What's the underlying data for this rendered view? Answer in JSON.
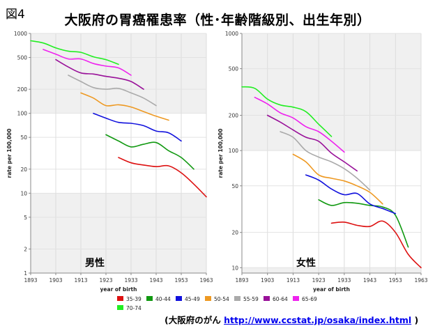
{
  "figure_label": "図4",
  "title": "大阪府の胃癌罹患率（性･年齢階級別、出生年別）",
  "footer": {
    "prefix": "(大阪府のがん ",
    "link": "http://www.ccstat.jp/osaka/index.html",
    "suffix": " )"
  },
  "chart_data": [
    {
      "type": "line",
      "panel_label": "男性",
      "xlabel": "year of birth",
      "ylabel": "rate per 100,000",
      "yscale": "log",
      "xlim": [
        1893,
        1963
      ],
      "ylim": [
        1,
        1000
      ],
      "xticks": [
        "1893",
        "1903",
        "1913",
        "1923",
        "1933",
        "1943",
        "1953",
        "1963"
      ],
      "yticks": [
        {
          "value": 1,
          "label": "1"
        },
        {
          "value": 2,
          "label": "2"
        },
        {
          "value": 5,
          "label": "5"
        },
        {
          "value": 10,
          "label": "10"
        },
        {
          "value": 20,
          "label": "20"
        },
        {
          "value": 50,
          "label": "50"
        },
        {
          "value": 100,
          "label": "100"
        },
        {
          "value": 200,
          "label": "200"
        },
        {
          "value": 500,
          "label": "500"
        },
        {
          "value": 1000,
          "label": "1000"
        }
      ],
      "series": [
        {
          "name": "35-39",
          "color": "#dd1111",
          "points": [
            [
              1928,
              28
            ],
            [
              1933,
              24
            ],
            [
              1938,
              22.5
            ],
            [
              1943,
              21.5
            ],
            [
              1948,
              22
            ],
            [
              1953,
              18
            ],
            [
              1958,
              13
            ],
            [
              1963,
              9
            ]
          ]
        },
        {
          "name": "40-44",
          "color": "#119911",
          "points": [
            [
              1923,
              54
            ],
            [
              1928,
              45
            ],
            [
              1933,
              38
            ],
            [
              1938,
              41
            ],
            [
              1943,
              43
            ],
            [
              1948,
              34
            ],
            [
              1953,
              28
            ],
            [
              1958,
              20
            ]
          ]
        },
        {
          "name": "45-49",
          "color": "#1111dd",
          "points": [
            [
              1918,
              100
            ],
            [
              1923,
              87
            ],
            [
              1928,
              77
            ],
            [
              1933,
              75
            ],
            [
              1938,
              70
            ],
            [
              1943,
              60
            ],
            [
              1948,
              57
            ],
            [
              1953,
              45
            ]
          ]
        },
        {
          "name": "50-54",
          "color": "#ee9922",
          "points": [
            [
              1913,
              180
            ],
            [
              1918,
              155
            ],
            [
              1923,
              125
            ],
            [
              1928,
              128
            ],
            [
              1933,
              120
            ],
            [
              1938,
              105
            ],
            [
              1943,
              92
            ],
            [
              1948,
              82
            ]
          ]
        },
        {
          "name": "55-59",
          "color": "#aaaaaa",
          "points": [
            [
              1908,
              300
            ],
            [
              1913,
              250
            ],
            [
              1918,
              210
            ],
            [
              1923,
              200
            ],
            [
              1928,
              205
            ],
            [
              1933,
              180
            ],
            [
              1938,
              155
            ],
            [
              1943,
              125
            ]
          ]
        },
        {
          "name": "60-64",
          "color": "#991199",
          "points": [
            [
              1903,
              470
            ],
            [
              1908,
              380
            ],
            [
              1913,
              320
            ],
            [
              1918,
              310
            ],
            [
              1923,
              290
            ],
            [
              1928,
              275
            ],
            [
              1933,
              250
            ],
            [
              1938,
              200
            ]
          ]
        },
        {
          "name": "65-69",
          "color": "#ee22ee",
          "points": [
            [
              1898,
              630
            ],
            [
              1903,
              550
            ],
            [
              1908,
              480
            ],
            [
              1913,
              480
            ],
            [
              1918,
              420
            ],
            [
              1923,
              390
            ],
            [
              1928,
              370
            ],
            [
              1933,
              300
            ]
          ]
        },
        {
          "name": "70-74",
          "color": "#22ee22",
          "points": [
            [
              1893,
              810
            ],
            [
              1898,
              760
            ],
            [
              1903,
              660
            ],
            [
              1908,
              600
            ],
            [
              1913,
              580
            ],
            [
              1918,
              510
            ],
            [
              1923,
              470
            ],
            [
              1928,
              410
            ]
          ]
        }
      ]
    },
    {
      "type": "line",
      "panel_label": "女性",
      "xlabel": "year of birth",
      "ylabel": "rate per 100,000",
      "yscale": "log",
      "xlim": [
        1893,
        1963
      ],
      "ylim": [
        9,
        1000
      ],
      "xticks": [
        "1893",
        "1903",
        "1913",
        "1923",
        "1933",
        "1943",
        "1953",
        "1963"
      ],
      "yticks": [
        {
          "value": 10,
          "label": "10"
        },
        {
          "value": 20,
          "label": "20"
        },
        {
          "value": 50,
          "label": "50"
        },
        {
          "value": 100,
          "label": "100"
        },
        {
          "value": 200,
          "label": "200"
        },
        {
          "value": 500,
          "label": "500"
        },
        {
          "value": 1000,
          "label": "1000"
        }
      ],
      "series": [
        {
          "name": "35-39",
          "color": "#dd1111",
          "points": [
            [
              1928,
              24
            ],
            [
              1933,
              24.5
            ],
            [
              1938,
              23
            ],
            [
              1943,
              22.5
            ],
            [
              1948,
              25
            ],
            [
              1953,
              20
            ],
            [
              1958,
              13
            ],
            [
              1963,
              10
            ]
          ]
        },
        {
          "name": "40-44",
          "color": "#119911",
          "points": [
            [
              1923,
              38
            ],
            [
              1928,
              34
            ],
            [
              1933,
              36
            ],
            [
              1938,
              35.5
            ],
            [
              1943,
              34
            ],
            [
              1948,
              33
            ],
            [
              1953,
              28
            ],
            [
              1958,
              15
            ]
          ]
        },
        {
          "name": "45-49",
          "color": "#1111dd",
          "points": [
            [
              1918,
              62
            ],
            [
              1923,
              56
            ],
            [
              1928,
              47
            ],
            [
              1933,
              42
            ],
            [
              1938,
              43
            ],
            [
              1943,
              35
            ],
            [
              1948,
              32
            ],
            [
              1953,
              29
            ]
          ]
        },
        {
          "name": "50-54",
          "color": "#ee9922",
          "points": [
            [
              1913,
              93
            ],
            [
              1918,
              80
            ],
            [
              1923,
              62
            ],
            [
              1928,
              58
            ],
            [
              1933,
              55
            ],
            [
              1938,
              50
            ],
            [
              1943,
              44
            ],
            [
              1948,
              35
            ]
          ]
        },
        {
          "name": "55-59",
          "color": "#aaaaaa",
          "points": [
            [
              1908,
              145
            ],
            [
              1913,
              130
            ],
            [
              1918,
              100
            ],
            [
              1923,
              88
            ],
            [
              1928,
              80
            ],
            [
              1933,
              70
            ],
            [
              1938,
              58
            ],
            [
              1943,
              46
            ]
          ]
        },
        {
          "name": "60-64",
          "color": "#991199",
          "points": [
            [
              1903,
              200
            ],
            [
              1908,
              175
            ],
            [
              1913,
              150
            ],
            [
              1918,
              130
            ],
            [
              1923,
              120
            ],
            [
              1928,
              95
            ],
            [
              1933,
              80
            ],
            [
              1938,
              67
            ]
          ]
        },
        {
          "name": "65-69",
          "color": "#ee22ee",
          "points": [
            [
              1898,
              285
            ],
            [
              1903,
              250
            ],
            [
              1908,
              210
            ],
            [
              1913,
              190
            ],
            [
              1918,
              160
            ],
            [
              1923,
              145
            ],
            [
              1928,
              120
            ],
            [
              1933,
              97
            ]
          ]
        },
        {
          "name": "70-74",
          "color": "#22ee22",
          "points": [
            [
              1893,
              350
            ],
            [
              1898,
              340
            ],
            [
              1903,
              275
            ],
            [
              1908,
              245
            ],
            [
              1913,
              235
            ],
            [
              1918,
              215
            ],
            [
              1923,
              168
            ],
            [
              1928,
              132
            ]
          ]
        }
      ]
    }
  ],
  "legend": [
    {
      "name": "35-39",
      "color": "#dd1111"
    },
    {
      "name": "40-44",
      "color": "#119911"
    },
    {
      "name": "45-49",
      "color": "#1111dd"
    },
    {
      "name": "50-54",
      "color": "#ee9922"
    },
    {
      "name": "55-59",
      "color": "#aaaaaa"
    },
    {
      "name": "60-64",
      "color": "#991199"
    },
    {
      "name": "65-69",
      "color": "#ee22ee"
    },
    {
      "name": "70-74",
      "color": "#22ee22"
    }
  ]
}
